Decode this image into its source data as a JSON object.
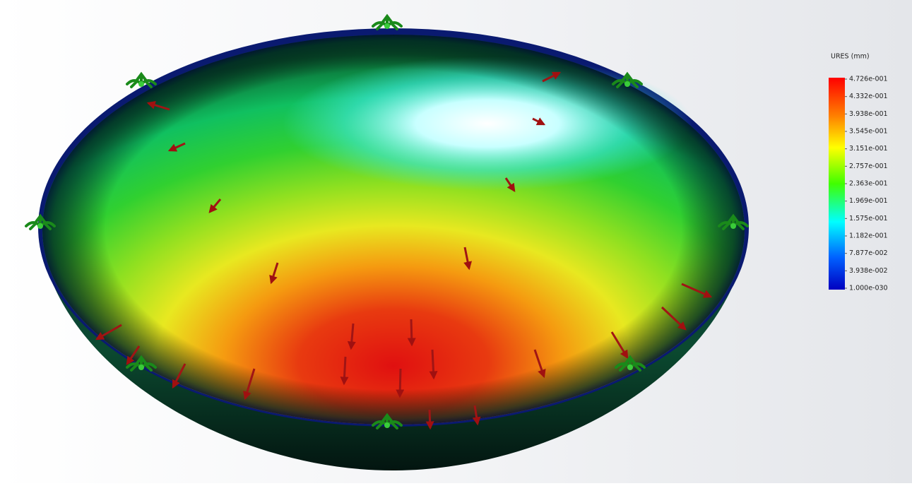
{
  "legend": {
    "title": "URES (mm)",
    "labels": [
      "4.726e-001",
      "4.332e-001",
      "3.938e-001",
      "3.545e-001",
      "3.151e-001",
      "2.757e-001",
      "2.363e-001",
      "1.969e-001",
      "1.575e-001",
      "1.182e-001",
      "7.877e-002",
      "3.938e-002",
      "1.000e-030"
    ]
  }
}
